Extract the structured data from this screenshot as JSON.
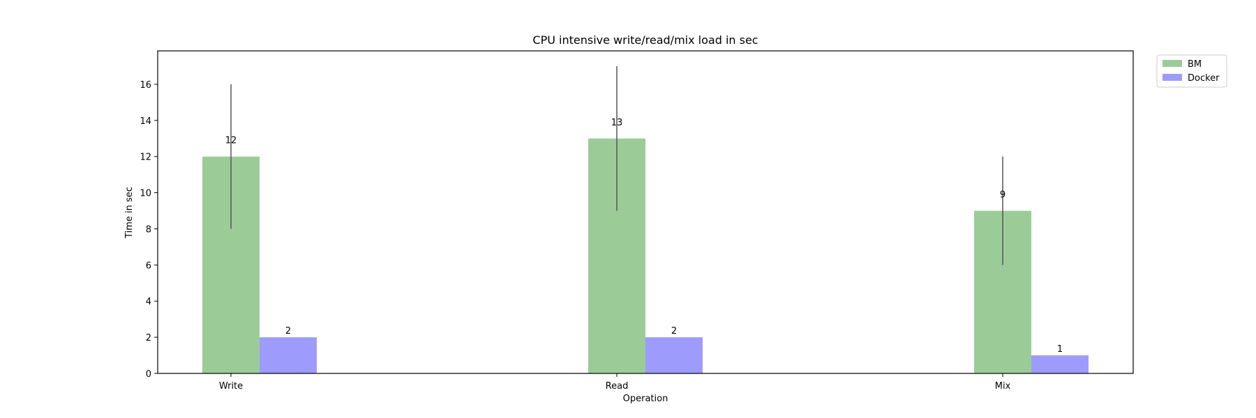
{
  "chart_data": {
    "type": "bar",
    "title": "CPU intensive write/read/mix load in sec",
    "xlabel": "Operation",
    "ylabel": "Time in sec",
    "categories": [
      "Write",
      "Read",
      "Mix"
    ],
    "ylim": [
      0,
      17.85
    ],
    "yticks": [
      0,
      2,
      4,
      6,
      8,
      10,
      12,
      14,
      16
    ],
    "grid": false,
    "legend_position": "outside top-right",
    "series": [
      {
        "name": "BM",
        "values": [
          12,
          13,
          9
        ],
        "error": [
          4,
          4,
          3
        ],
        "value_labels": [
          "12",
          "13",
          "9"
        ],
        "color": "#9bcc98"
      },
      {
        "name": "Docker",
        "values": [
          2,
          2,
          1
        ],
        "value_labels": [
          "2",
          "2",
          "1"
        ],
        "color": "#9d9cfc"
      }
    ],
    "error_bar_color": "#555555"
  }
}
